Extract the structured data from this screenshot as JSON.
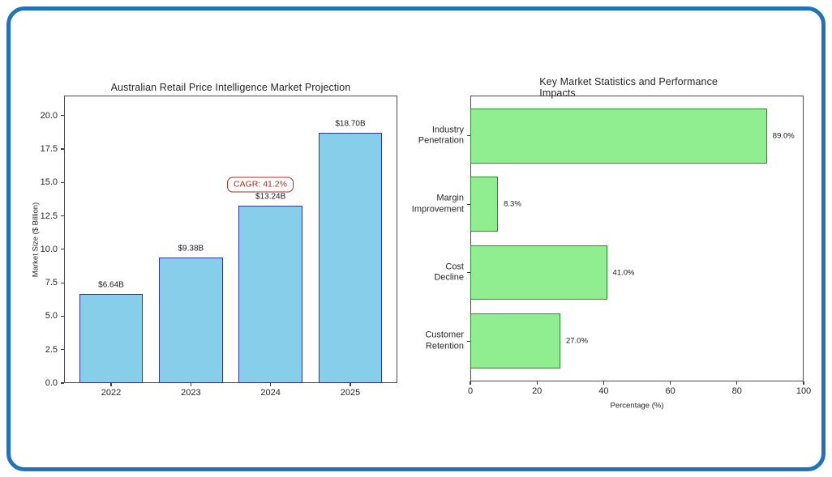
{
  "figure": {
    "background": "#ffffff",
    "border_color": "#2272b9"
  },
  "chart_data": [
    {
      "type": "bar",
      "orientation": "vertical",
      "title": "Australian Retail Price Intelligence Market Projection",
      "xlabel": "",
      "ylabel": "Market Size ($ Billion)",
      "categories": [
        "2022",
        "2023",
        "2024",
        "2025"
      ],
      "values": [
        6.64,
        9.38,
        13.24,
        18.7
      ],
      "bar_labels": [
        "$6.64B",
        "$9.38B",
        "$13.24B",
        "$18.70B"
      ],
      "yticks": [
        "0.0",
        "2.5",
        "5.0",
        "7.5",
        "10.0",
        "12.5",
        "15.0",
        "17.5",
        "20.0"
      ],
      "ylim": [
        0,
        21.5
      ],
      "grid": false,
      "legend": "none",
      "bar_fill": "#87ceeb",
      "bar_edge": "#2b3a98",
      "annotation": {
        "text": "CAGR: 41.2%",
        "color": "#a93226",
        "boxed": true
      }
    },
    {
      "type": "bar",
      "orientation": "horizontal",
      "title": "Key Market Statistics and Performance Impacts",
      "xlabel": "Percentage (%)",
      "ylabel": "",
      "categories": [
        "Industry\nPenetration",
        "Margin\nImprovement",
        "Cost\nDecline",
        "Customer\nRetention"
      ],
      "values": [
        89.0,
        8.3,
        41.0,
        27.0
      ],
      "bar_labels": [
        "89.0%",
        "8.3%",
        "41.0%",
        "27.0%"
      ],
      "xticks": [
        "0",
        "20",
        "40",
        "60",
        "80",
        "100"
      ],
      "xlim": [
        0,
        100
      ],
      "grid": false,
      "legend": "none",
      "bar_fill": "#90ee90",
      "bar_edge": "#2e8b2e"
    }
  ]
}
